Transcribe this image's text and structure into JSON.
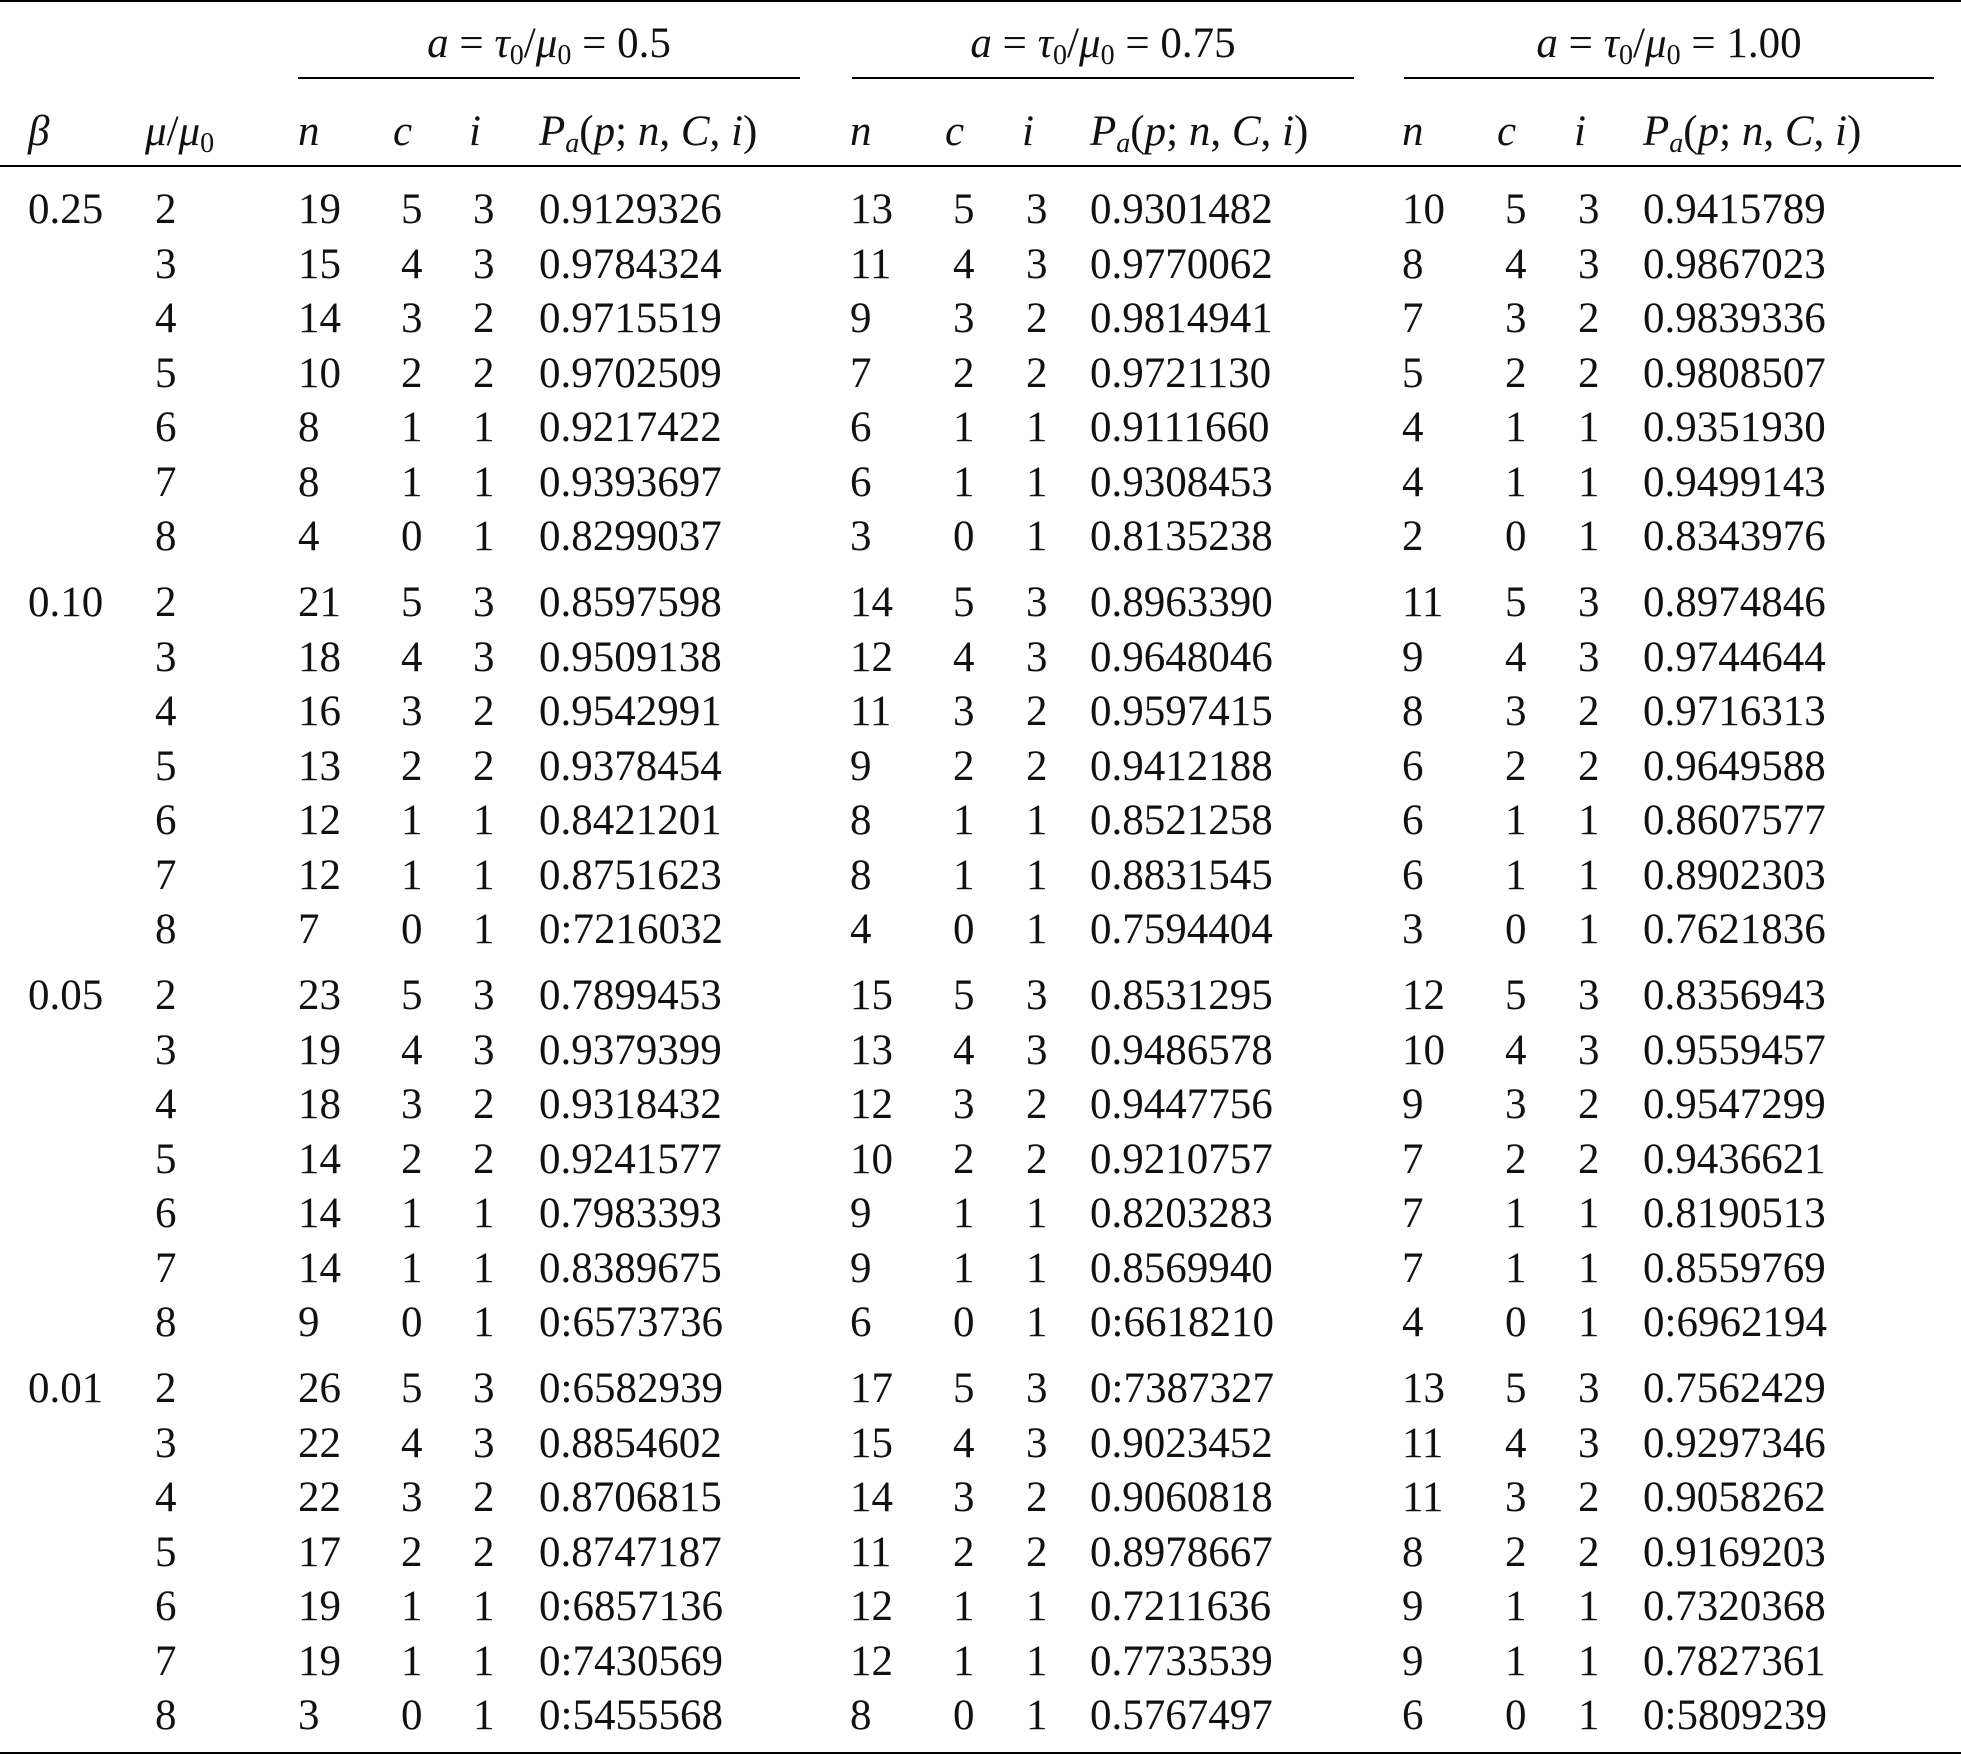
{
  "header": {
    "groups": [
      {
        "label": "a = τ0/μ0 = 0.5",
        "value": "0.5"
      },
      {
        "label": "a = τ0/μ0 = 0.75",
        "value": "0.75"
      },
      {
        "label": "a = τ0/μ0 = 1.00",
        "value": "1.00"
      }
    ],
    "columns": [
      "β",
      "μ/μ0",
      "n",
      "c",
      "i",
      "Pa(p; n, C, i)"
    ]
  },
  "blocks": [
    {
      "beta": "0.25",
      "rows": [
        [
          "2",
          "19",
          "5",
          "3",
          "0.9129326",
          "13",
          "5",
          "3",
          "0.9301482",
          "10",
          "5",
          "3",
          "0.9415789"
        ],
        [
          "3",
          "15",
          "4",
          "3",
          "0.9784324",
          "11",
          "4",
          "3",
          "0.9770062",
          "8",
          "4",
          "3",
          "0.9867023"
        ],
        [
          "4",
          "14",
          "3",
          "2",
          "0.9715519",
          "9",
          "3",
          "2",
          "0.9814941",
          "7",
          "3",
          "2",
          "0.9839336"
        ],
        [
          "5",
          "10",
          "2",
          "2",
          "0.9702509",
          "7",
          "2",
          "2",
          "0.9721130",
          "5",
          "2",
          "2",
          "0.9808507"
        ],
        [
          "6",
          "8",
          "1",
          "1",
          "0.9217422",
          "6",
          "1",
          "1",
          "0.9111660",
          "4",
          "1",
          "1",
          "0.9351930"
        ],
        [
          "7",
          "8",
          "1",
          "1",
          "0.9393697",
          "6",
          "1",
          "1",
          "0.9308453",
          "4",
          "1",
          "1",
          "0.9499143"
        ],
        [
          "8",
          "4",
          "0",
          "1",
          "0.8299037",
          "3",
          "0",
          "1",
          "0.8135238",
          "2",
          "0",
          "1",
          "0.8343976"
        ]
      ]
    },
    {
      "beta": "0.10",
      "rows": [
        [
          "2",
          "21",
          "5",
          "3",
          "0.8597598",
          "14",
          "5",
          "3",
          "0.8963390",
          "11",
          "5",
          "3",
          "0.8974846"
        ],
        [
          "3",
          "18",
          "4",
          "3",
          "0.9509138",
          "12",
          "4",
          "3",
          "0.9648046",
          "9",
          "4",
          "3",
          "0.9744644"
        ],
        [
          "4",
          "16",
          "3",
          "2",
          "0.9542991",
          "11",
          "3",
          "2",
          "0.9597415",
          "8",
          "3",
          "2",
          "0.9716313"
        ],
        [
          "5",
          "13",
          "2",
          "2",
          "0.9378454",
          "9",
          "2",
          "2",
          "0.9412188",
          "6",
          "2",
          "2",
          "0.9649588"
        ],
        [
          "6",
          "12",
          "1",
          "1",
          "0.8421201",
          "8",
          "1",
          "1",
          "0.8521258",
          "6",
          "1",
          "1",
          "0.8607577"
        ],
        [
          "7",
          "12",
          "1",
          "1",
          "0.8751623",
          "8",
          "1",
          "1",
          "0.8831545",
          "6",
          "1",
          "1",
          "0.8902303"
        ],
        [
          "8",
          "7",
          "0",
          "1",
          "0:7216032",
          "4",
          "0",
          "1",
          "0.7594404",
          "3",
          "0",
          "1",
          "0.7621836"
        ]
      ]
    },
    {
      "beta": "0.05",
      "rows": [
        [
          "2",
          "23",
          "5",
          "3",
          "0.7899453",
          "15",
          "5",
          "3",
          "0.8531295",
          "12",
          "5",
          "3",
          "0.8356943"
        ],
        [
          "3",
          "19",
          "4",
          "3",
          "0.9379399",
          "13",
          "4",
          "3",
          "0.9486578",
          "10",
          "4",
          "3",
          "0.9559457"
        ],
        [
          "4",
          "18",
          "3",
          "2",
          "0.9318432",
          "12",
          "3",
          "2",
          "0.9447756",
          "9",
          "3",
          "2",
          "0.9547299"
        ],
        [
          "5",
          "14",
          "2",
          "2",
          "0.9241577",
          "10",
          "2",
          "2",
          "0.9210757",
          "7",
          "2",
          "2",
          "0.9436621"
        ],
        [
          "6",
          "14",
          "1",
          "1",
          "0.7983393",
          "9",
          "1",
          "1",
          "0.8203283",
          "7",
          "1",
          "1",
          "0.8190513"
        ],
        [
          "7",
          "14",
          "1",
          "1",
          "0.8389675",
          "9",
          "1",
          "1",
          "0.8569940",
          "7",
          "1",
          "1",
          "0.8559769"
        ],
        [
          "8",
          "9",
          "0",
          "1",
          "0:6573736",
          "6",
          "0",
          "1",
          "0:6618210",
          "4",
          "0",
          "1",
          "0:6962194"
        ]
      ]
    },
    {
      "beta": "0.01",
      "rows": [
        [
          "2",
          "26",
          "5",
          "3",
          "0:6582939",
          "17",
          "5",
          "3",
          "0:7387327",
          "13",
          "5",
          "3",
          "0.7562429"
        ],
        [
          "3",
          "22",
          "4",
          "3",
          "0.8854602",
          "15",
          "4",
          "3",
          "0.9023452",
          "11",
          "4",
          "3",
          "0.9297346"
        ],
        [
          "4",
          "22",
          "3",
          "2",
          "0.8706815",
          "14",
          "3",
          "2",
          "0.9060818",
          "11",
          "3",
          "2",
          "0.9058262"
        ],
        [
          "5",
          "17",
          "2",
          "2",
          "0.8747187",
          "11",
          "2",
          "2",
          "0.8978667",
          "8",
          "2",
          "2",
          "0.9169203"
        ],
        [
          "6",
          "19",
          "1",
          "1",
          "0:6857136",
          "12",
          "1",
          "1",
          "0.7211636",
          "9",
          "1",
          "1",
          "0.7320368"
        ],
        [
          "7",
          "19",
          "1",
          "1",
          "0:7430569",
          "12",
          "1",
          "1",
          "0.7733539",
          "9",
          "1",
          "1",
          "0.7827361"
        ],
        [
          "8",
          "3",
          "0",
          "1",
          "0:5455568",
          "8",
          "0",
          "1",
          "0.5767497",
          "6",
          "0",
          "1",
          "0:5809239"
        ]
      ]
    }
  ]
}
